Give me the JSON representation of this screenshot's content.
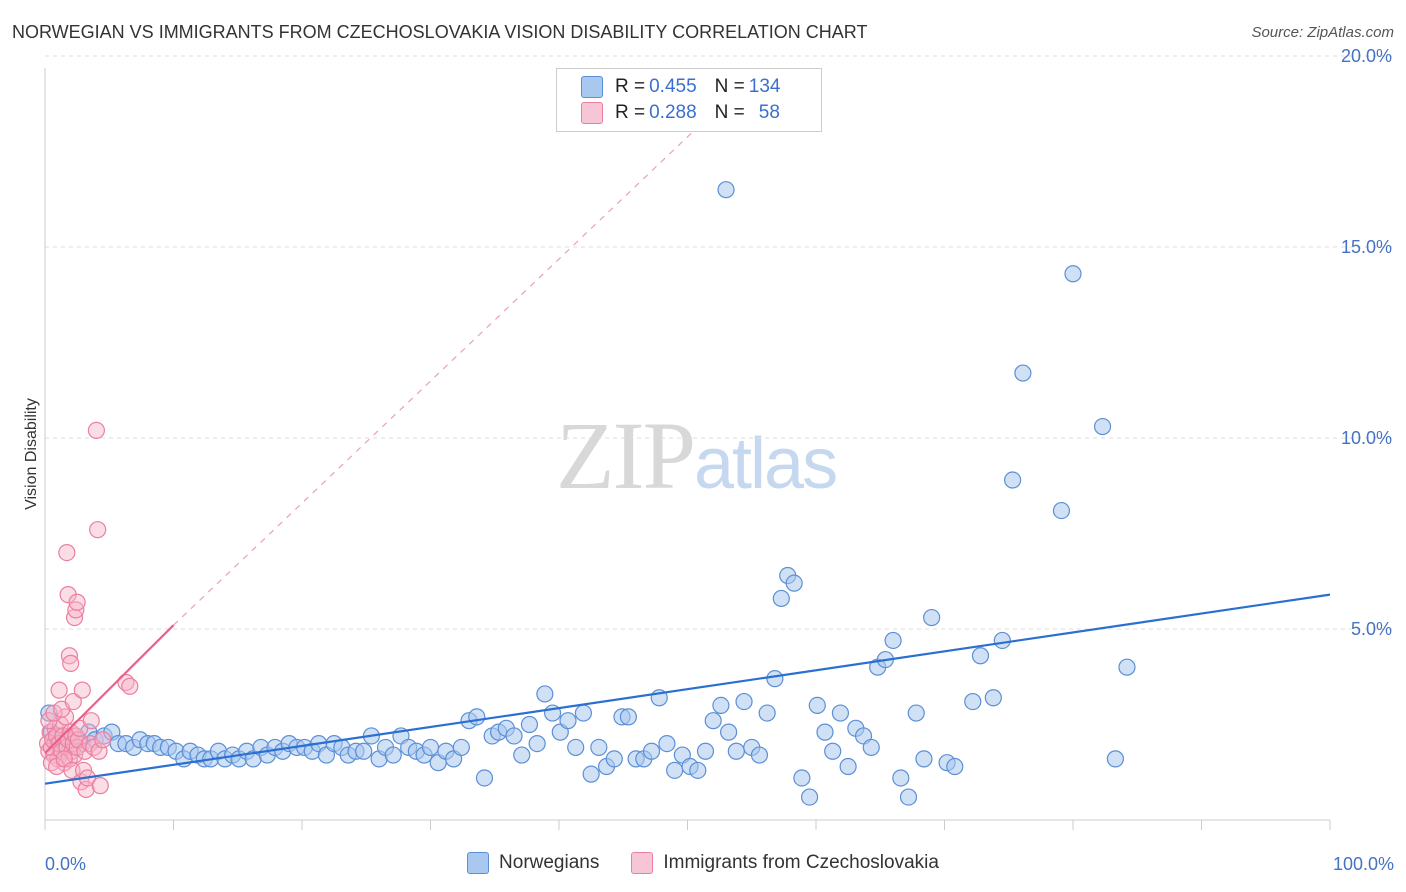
{
  "title": "NORWEGIAN VS IMMIGRANTS FROM CZECHOSLOVAKIA VISION DISABILITY CORRELATION CHART",
  "source": "Source: ZipAtlas.com",
  "watermark": {
    "zip": "ZIP",
    "atlas": "atlas"
  },
  "legend": {
    "rows": [
      {
        "r_label": "R = ",
        "r": "0.455",
        "n_label": "N = ",
        "n": "134"
      },
      {
        "r_label": "R = ",
        "r": "0.288",
        "n_label": "N = ",
        "n": "58"
      }
    ]
  },
  "colors": {
    "blue_fill": "#a9c8ef",
    "blue_stroke": "#5b8fd6",
    "blue_line": "#2a6fd1",
    "pink_fill": "#f7b3c8",
    "pink_stroke": "#ec7fa0",
    "pink_line": "#e8608a",
    "tick": "#4472c4",
    "grid": "#dddddd"
  },
  "chart_data": {
    "type": "scatter",
    "title": "NORWEGIAN VS IMMIGRANTS FROM CZECHOSLOVAKIA VISION DISABILITY CORRELATION CHART",
    "xlabel": "",
    "ylabel": "Vision Disability",
    "xlim": [
      0,
      100
    ],
    "ylim": [
      0,
      20.5
    ],
    "x_tick_labels": [
      "0.0%",
      "100.0%"
    ],
    "y_ticks": [
      5,
      10,
      15,
      20
    ],
    "y_tick_labels": [
      "5.0%",
      "10.0%",
      "15.0%",
      "20.0%"
    ],
    "grid": true,
    "legend_position": "top-center",
    "series": [
      {
        "name": "Norwegians",
        "trend": {
          "x": [
            0,
            100
          ],
          "y": [
            0.95,
            5.9
          ]
        },
        "points": [
          [
            0.3,
            2.8
          ],
          [
            0.5,
            2.3
          ],
          [
            0.8,
            2.0
          ],
          [
            1.1,
            2.2
          ],
          [
            1.5,
            1.9
          ],
          [
            1.9,
            2.1
          ],
          [
            2.4,
            2.2
          ],
          [
            2.9,
            2.0
          ],
          [
            3.4,
            2.3
          ],
          [
            3.9,
            2.1
          ],
          [
            4.6,
            2.2
          ],
          [
            5.2,
            2.3
          ],
          [
            5.7,
            2.0
          ],
          [
            6.3,
            2.0
          ],
          [
            6.9,
            1.9
          ],
          [
            7.4,
            2.1
          ],
          [
            8.0,
            2.0
          ],
          [
            8.5,
            2.0
          ],
          [
            9.0,
            1.9
          ],
          [
            9.6,
            1.9
          ],
          [
            10.2,
            1.8
          ],
          [
            10.8,
            1.6
          ],
          [
            11.3,
            1.8
          ],
          [
            11.9,
            1.7
          ],
          [
            12.4,
            1.6
          ],
          [
            12.9,
            1.6
          ],
          [
            13.5,
            1.8
          ],
          [
            14.0,
            1.6
          ],
          [
            14.6,
            1.7
          ],
          [
            15.1,
            1.6
          ],
          [
            15.7,
            1.8
          ],
          [
            16.2,
            1.6
          ],
          [
            16.8,
            1.9
          ],
          [
            17.3,
            1.7
          ],
          [
            17.9,
            1.9
          ],
          [
            18.5,
            1.8
          ],
          [
            19.0,
            2.0
          ],
          [
            19.6,
            1.9
          ],
          [
            20.2,
            1.9
          ],
          [
            20.8,
            1.8
          ],
          [
            21.3,
            2.0
          ],
          [
            21.9,
            1.7
          ],
          [
            22.5,
            2.0
          ],
          [
            23.1,
            1.9
          ],
          [
            23.6,
            1.7
          ],
          [
            24.2,
            1.8
          ],
          [
            24.8,
            1.8
          ],
          [
            25.4,
            2.2
          ],
          [
            26.0,
            1.6
          ],
          [
            26.5,
            1.9
          ],
          [
            27.1,
            1.7
          ],
          [
            27.7,
            2.2
          ],
          [
            28.3,
            1.9
          ],
          [
            28.9,
            1.8
          ],
          [
            29.5,
            1.7
          ],
          [
            30.0,
            1.9
          ],
          [
            30.6,
            1.5
          ],
          [
            31.2,
            1.8
          ],
          [
            31.8,
            1.6
          ],
          [
            32.4,
            1.9
          ],
          [
            33.0,
            2.6
          ],
          [
            33.6,
            2.7
          ],
          [
            34.2,
            1.1
          ],
          [
            34.8,
            2.2
          ],
          [
            35.3,
            2.3
          ],
          [
            35.9,
            2.4
          ],
          [
            36.5,
            2.2
          ],
          [
            37.1,
            1.7
          ],
          [
            37.7,
            2.5
          ],
          [
            38.3,
            2.0
          ],
          [
            38.9,
            3.3
          ],
          [
            39.5,
            2.8
          ],
          [
            40.1,
            2.3
          ],
          [
            40.7,
            2.6
          ],
          [
            41.3,
            1.9
          ],
          [
            41.9,
            2.8
          ],
          [
            42.5,
            1.2
          ],
          [
            43.1,
            1.9
          ],
          [
            43.7,
            1.4
          ],
          [
            44.3,
            1.6
          ],
          [
            44.9,
            2.7
          ],
          [
            45.4,
            2.7
          ],
          [
            46.0,
            1.6
          ],
          [
            46.6,
            1.6
          ],
          [
            47.2,
            1.8
          ],
          [
            47.8,
            3.2
          ],
          [
            48.4,
            2.0
          ],
          [
            49.0,
            1.3
          ],
          [
            49.6,
            1.7
          ],
          [
            50.2,
            1.4
          ],
          [
            50.8,
            1.3
          ],
          [
            51.4,
            1.8
          ],
          [
            52.0,
            2.6
          ],
          [
            52.6,
            3.0
          ],
          [
            53.2,
            2.3
          ],
          [
            53.8,
            1.8
          ],
          [
            54.4,
            3.1
          ],
          [
            55.0,
            1.9
          ],
          [
            55.6,
            1.7
          ],
          [
            56.2,
            2.8
          ],
          [
            56.8,
            3.7
          ],
          [
            57.3,
            5.8
          ],
          [
            57.8,
            6.4
          ],
          [
            58.3,
            6.2
          ],
          [
            58.9,
            1.1
          ],
          [
            59.5,
            0.6
          ],
          [
            60.1,
            3.0
          ],
          [
            60.7,
            2.3
          ],
          [
            61.3,
            1.8
          ],
          [
            61.9,
            2.8
          ],
          [
            62.5,
            1.4
          ],
          [
            63.1,
            2.4
          ],
          [
            63.7,
            2.2
          ],
          [
            64.3,
            1.9
          ],
          [
            64.8,
            4.0
          ],
          [
            65.4,
            4.2
          ],
          [
            66.0,
            4.7
          ],
          [
            66.6,
            1.1
          ],
          [
            67.2,
            0.6
          ],
          [
            67.8,
            2.8
          ],
          [
            68.4,
            1.6
          ],
          [
            69.0,
            5.3
          ],
          [
            70.2,
            1.5
          ],
          [
            70.8,
            1.4
          ],
          [
            72.2,
            3.1
          ],
          [
            72.8,
            4.3
          ],
          [
            73.8,
            3.2
          ],
          [
            74.5,
            4.7
          ],
          [
            75.3,
            8.9
          ],
          [
            76.1,
            11.7
          ],
          [
            79.1,
            8.1
          ],
          [
            80.0,
            14.3
          ],
          [
            82.3,
            10.3
          ],
          [
            83.3,
            1.6
          ],
          [
            84.2,
            4.0
          ],
          [
            53.0,
            16.5
          ]
        ]
      },
      {
        "name": "Immigrants from Czechoslovakia",
        "trend": {
          "x": [
            0,
            10
          ],
          "y": [
            1.75,
            5.1
          ]
        },
        "trend_extension": {
          "x": [
            10,
            53.5
          ],
          "y": [
            5.1,
            19.0
          ]
        },
        "points": [
          [
            0.2,
            2.0
          ],
          [
            0.3,
            1.8
          ],
          [
            0.4,
            2.3
          ],
          [
            0.5,
            1.9
          ],
          [
            0.6,
            2.1
          ],
          [
            0.7,
            1.7
          ],
          [
            0.8,
            2.4
          ],
          [
            0.9,
            2.2
          ],
          [
            1.0,
            1.6
          ],
          [
            1.1,
            2.0
          ],
          [
            1.2,
            2.5
          ],
          [
            1.3,
            1.8
          ],
          [
            1.4,
            2.2
          ],
          [
            1.5,
            1.5
          ],
          [
            1.6,
            2.7
          ],
          [
            1.7,
            1.9
          ],
          [
            1.8,
            2.1
          ],
          [
            1.9,
            1.6
          ],
          [
            2.0,
            2.3
          ],
          [
            2.1,
            1.8
          ],
          [
            2.2,
            2.0
          ],
          [
            2.3,
            1.7
          ],
          [
            2.4,
            2.2
          ],
          [
            2.5,
            1.9
          ],
          [
            0.3,
            2.6
          ],
          [
            0.5,
            1.5
          ],
          [
            0.7,
            2.8
          ],
          [
            0.9,
            1.4
          ],
          [
            1.1,
            3.4
          ],
          [
            1.3,
            2.9
          ],
          [
            1.5,
            1.6
          ],
          [
            1.7,
            7.0
          ],
          [
            1.8,
            5.9
          ],
          [
            1.9,
            4.3
          ],
          [
            2.0,
            4.1
          ],
          [
            2.1,
            1.3
          ],
          [
            2.2,
            3.1
          ],
          [
            2.3,
            5.3
          ],
          [
            2.4,
            5.5
          ],
          [
            2.5,
            5.7
          ],
          [
            2.6,
            2.1
          ],
          [
            2.7,
            2.4
          ],
          [
            2.8,
            1.0
          ],
          [
            2.9,
            3.4
          ],
          [
            3.0,
            1.3
          ],
          [
            3.1,
            1.8
          ],
          [
            3.2,
            0.8
          ],
          [
            3.3,
            1.1
          ],
          [
            3.5,
            2.0
          ],
          [
            3.6,
            2.6
          ],
          [
            3.8,
            1.9
          ],
          [
            4.0,
            10.2
          ],
          [
            4.1,
            7.6
          ],
          [
            4.2,
            1.8
          ],
          [
            4.3,
            0.9
          ],
          [
            4.5,
            2.1
          ],
          [
            6.3,
            3.6
          ],
          [
            6.6,
            3.5
          ]
        ]
      }
    ]
  }
}
